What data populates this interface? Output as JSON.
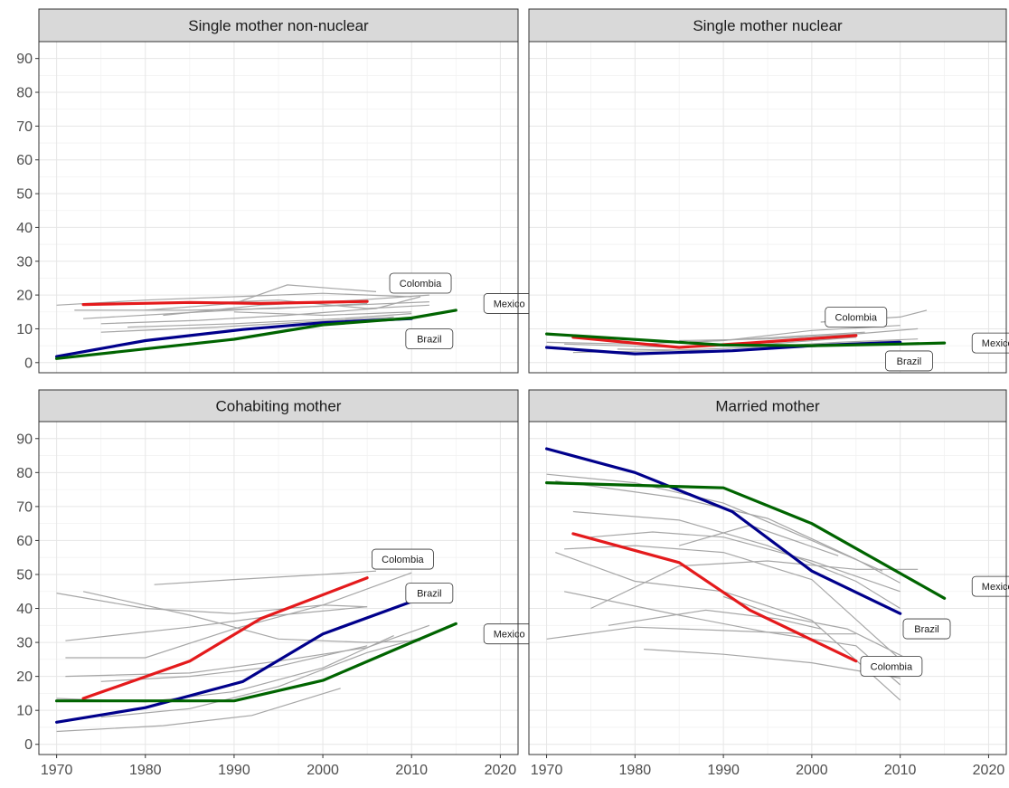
{
  "chart_data": [
    {
      "type": "line",
      "title": "Single mother non-nuclear",
      "xlim": [
        1968,
        2022
      ],
      "ylim": [
        -3,
        95
      ],
      "xticks": [
        1970,
        1980,
        1990,
        2000,
        2010,
        2020
      ],
      "yticks": [
        0,
        10,
        20,
        30,
        40,
        50,
        60,
        70,
        80,
        90
      ],
      "grid": true,
      "series": [
        {
          "name": "Colombia",
          "color": "#e41a1c",
          "x": [
            1973,
            1985,
            1993,
            2005
          ],
          "y": [
            17.2,
            17.8,
            17.5,
            18.1
          ]
        },
        {
          "name": "Brazil",
          "color": "#00008b",
          "x": [
            1970,
            1980,
            1991,
            2000,
            2010
          ],
          "y": [
            1.8,
            6.5,
            9.8,
            11.8,
            13.0
          ]
        },
        {
          "name": "Mexico",
          "color": "#006400",
          "x": [
            1970,
            1990,
            2000,
            2010,
            2015
          ],
          "y": [
            1.2,
            6.9,
            11.2,
            13.2,
            15.5
          ]
        }
      ],
      "labels": [
        {
          "country": "Colombia",
          "x": 2011,
          "y": 23.5
        },
        {
          "country": "Mexico",
          "x": 2021,
          "y": 17.5
        },
        {
          "country": "Brazil",
          "x": 2012,
          "y": 7.0
        }
      ],
      "background_lines": [
        [
          [
            1970,
            17.0
          ],
          [
            1980,
            18.5
          ],
          [
            1990,
            19.5
          ],
          [
            2000,
            20.5
          ],
          [
            2010,
            19.5
          ]
        ],
        [
          [
            1972,
            15.5
          ],
          [
            1985,
            15.5
          ],
          [
            1995,
            16.0
          ],
          [
            2005,
            17.5
          ]
        ],
        [
          [
            1973,
            13.0
          ],
          [
            1983,
            14.5
          ],
          [
            1993,
            16.0
          ],
          [
            2003,
            17.0
          ],
          [
            2012,
            18.0
          ]
        ],
        [
          [
            1975,
            11.5
          ],
          [
            1986,
            12.5
          ],
          [
            1996,
            14.0
          ],
          [
            2006,
            16.0
          ],
          [
            2011,
            19.5
          ]
        ],
        [
          [
            1978,
            10.5
          ],
          [
            1990,
            11.5
          ],
          [
            2002,
            13.0
          ],
          [
            2010,
            14.5
          ]
        ],
        [
          [
            1980,
            15.5
          ],
          [
            1990,
            17.5
          ],
          [
            1996,
            23.0
          ],
          [
            2006,
            21.0
          ]
        ],
        [
          [
            1975,
            9.0
          ],
          [
            1988,
            10.5
          ],
          [
            1998,
            12.0
          ],
          [
            2008,
            13.5
          ]
        ],
        [
          [
            1985,
            17.5
          ],
          [
            1995,
            18.5
          ],
          [
            2005,
            16.0
          ],
          [
            2012,
            17.0
          ]
        ],
        [
          [
            1990,
            15.0
          ],
          [
            2000,
            14.0
          ],
          [
            2010,
            15.0
          ]
        ],
        [
          [
            1982,
            14.0
          ],
          [
            1993,
            17.0
          ],
          [
            2004,
            18.5
          ],
          [
            2012,
            20.0
          ]
        ]
      ]
    },
    {
      "type": "line",
      "title": "Single mother nuclear",
      "xlim": [
        1968,
        2022
      ],
      "ylim": [
        -3,
        95
      ],
      "xticks": [
        1970,
        1980,
        1990,
        2000,
        2010,
        2020
      ],
      "yticks": [
        0,
        10,
        20,
        30,
        40,
        50,
        60,
        70,
        80,
        90
      ],
      "grid": true,
      "series": [
        {
          "name": "Colombia",
          "color": "#e41a1c",
          "x": [
            1973,
            1985,
            1993,
            2005
          ],
          "y": [
            7.5,
            4.5,
            5.8,
            8.0
          ]
        },
        {
          "name": "Brazil",
          "color": "#00008b",
          "x": [
            1970,
            1980,
            1991,
            2000,
            2010
          ],
          "y": [
            4.5,
            2.6,
            3.5,
            5.0,
            6.0
          ]
        },
        {
          "name": "Mexico",
          "color": "#006400",
          "x": [
            1970,
            1990,
            2000,
            2010,
            2015
          ],
          "y": [
            8.5,
            5.2,
            5.0,
            5.5,
            5.8
          ]
        }
      ],
      "labels": [
        {
          "country": "Colombia",
          "x": 2005,
          "y": 13.5
        },
        {
          "country": "Mexico",
          "x": 2021,
          "y": 5.8
        },
        {
          "country": "Brazil",
          "x": 2011,
          "y": 0.5
        }
      ],
      "background_lines": [
        [
          [
            1970,
            6.0
          ],
          [
            1980,
            5.5
          ],
          [
            1990,
            6.5
          ],
          [
            2000,
            9.5
          ],
          [
            2010,
            11.0
          ]
        ],
        [
          [
            1972,
            5.5
          ],
          [
            1985,
            4.5
          ],
          [
            1995,
            5.5
          ],
          [
            2005,
            7.5
          ]
        ],
        [
          [
            1973,
            3.0
          ],
          [
            1983,
            3.5
          ],
          [
            1993,
            4.5
          ],
          [
            2003,
            6.0
          ],
          [
            2012,
            7.0
          ]
        ],
        [
          [
            1976,
            7.5
          ],
          [
            1986,
            6.0
          ],
          [
            1996,
            7.5
          ],
          [
            2006,
            9.0
          ]
        ],
        [
          [
            1978,
            4.0
          ],
          [
            1990,
            3.5
          ],
          [
            2002,
            5.5
          ],
          [
            2010,
            6.5
          ]
        ],
        [
          [
            1985,
            6.5
          ],
          [
            1995,
            7.0
          ],
          [
            2005,
            8.5
          ],
          [
            2012,
            10.0
          ]
        ],
        [
          [
            2001,
            12.0
          ],
          [
            2010,
            13.5
          ],
          [
            2013,
            15.5
          ]
        ]
      ]
    },
    {
      "type": "line",
      "title": "Cohabiting mother",
      "xlim": [
        1968,
        2022
      ],
      "ylim": [
        -3,
        95
      ],
      "xticks": [
        1970,
        1980,
        1990,
        2000,
        2010,
        2020
      ],
      "yticks": [
        0,
        10,
        20,
        30,
        40,
        50,
        60,
        70,
        80,
        90
      ],
      "grid": true,
      "series": [
        {
          "name": "Colombia",
          "color": "#e41a1c",
          "x": [
            1973,
            1985,
            1993,
            2005
          ],
          "y": [
            13.5,
            24.5,
            37.0,
            49.0
          ]
        },
        {
          "name": "Brazil",
          "color": "#00008b",
          "x": [
            1970,
            1980,
            1991,
            2000,
            2010
          ],
          "y": [
            6.5,
            10.8,
            18.5,
            32.5,
            42.0
          ]
        },
        {
          "name": "Mexico",
          "color": "#006400",
          "x": [
            1970,
            1990,
            2000,
            2010,
            2015
          ],
          "y": [
            12.8,
            12.8,
            18.8,
            30.0,
            35.5
          ]
        }
      ],
      "labels": [
        {
          "country": "Colombia",
          "x": 2009,
          "y": 54.5
        },
        {
          "country": "Brazil",
          "x": 2012,
          "y": 44.5
        },
        {
          "country": "Mexico",
          "x": 2021,
          "y": 32.5
        }
      ],
      "background_lines": [
        [
          [
            1970,
            44.5
          ],
          [
            1980,
            40.0
          ],
          [
            1990,
            38.5
          ],
          [
            2000,
            41.0
          ],
          [
            2005,
            40.5
          ]
        ],
        [
          [
            1973,
            45.0
          ],
          [
            1985,
            38.0
          ],
          [
            1995,
            31.0
          ],
          [
            2005,
            30.0
          ],
          [
            2011,
            30.5
          ]
        ],
        [
          [
            1981,
            47.0
          ],
          [
            1990,
            48.5
          ],
          [
            2000,
            50.0
          ],
          [
            2006,
            51.0
          ]
        ],
        [
          [
            1971,
            30.5
          ],
          [
            1985,
            34.5
          ],
          [
            1995,
            38.0
          ],
          [
            2005,
            40.5
          ]
        ],
        [
          [
            1971,
            25.5
          ],
          [
            1980,
            25.5
          ],
          [
            1990,
            34.0
          ],
          [
            2000,
            41.0
          ],
          [
            2010,
            50.5
          ]
        ],
        [
          [
            1971,
            20.0
          ],
          [
            1985,
            21.0
          ],
          [
            1995,
            24.5
          ],
          [
            2005,
            28.5
          ],
          [
            2012,
            35.0
          ]
        ],
        [
          [
            1975,
            18.5
          ],
          [
            1985,
            20.0
          ],
          [
            1995,
            23.0
          ],
          [
            2005,
            29.0
          ]
        ],
        [
          [
            1970,
            13.5
          ],
          [
            1980,
            12.5
          ],
          [
            1990,
            15.5
          ],
          [
            2000,
            22.5
          ],
          [
            2008,
            32.0
          ]
        ],
        [
          [
            1970,
            3.8
          ],
          [
            1982,
            5.5
          ],
          [
            1992,
            8.5
          ],
          [
            2002,
            16.5
          ]
        ],
        [
          [
            1975,
            8.0
          ],
          [
            1985,
            10.5
          ],
          [
            1995,
            17.0
          ],
          [
            2005,
            27.0
          ],
          [
            2012,
            32.0
          ]
        ]
      ]
    },
    {
      "type": "line",
      "title": "Married mother",
      "xlim": [
        1968,
        2022
      ],
      "ylim": [
        -3,
        95
      ],
      "xticks": [
        1970,
        1980,
        1990,
        2000,
        2010,
        2020
      ],
      "yticks": [
        0,
        10,
        20,
        30,
        40,
        50,
        60,
        70,
        80,
        90
      ],
      "grid": true,
      "series": [
        {
          "name": "Colombia",
          "color": "#e41a1c",
          "x": [
            1973,
            1985,
            1993,
            2005
          ],
          "y": [
            62.0,
            53.5,
            39.5,
            24.5
          ]
        },
        {
          "name": "Brazil",
          "color": "#00008b",
          "x": [
            1970,
            1980,
            1991,
            2000,
            2010
          ],
          "y": [
            87.0,
            80.0,
            68.5,
            51.0,
            38.5
          ]
        },
        {
          "name": "Mexico",
          "color": "#006400",
          "x": [
            1970,
            1990,
            2000,
            2015
          ],
          "y": [
            77.0,
            75.5,
            65.0,
            43.0
          ]
        }
      ],
      "labels": [
        {
          "country": "Mexico",
          "x": 2021,
          "y": 46.5
        },
        {
          "country": "Brazil",
          "x": 2013,
          "y": 34.0
        },
        {
          "country": "Colombia",
          "x": 2009,
          "y": 23.0
        }
      ],
      "background_lines": [
        [
          [
            1970,
            79.5
          ],
          [
            1980,
            77.0
          ],
          [
            1990,
            71.0
          ],
          [
            2000,
            60.0
          ],
          [
            2008,
            51.0
          ]
        ],
        [
          [
            1971,
            77.5
          ],
          [
            1985,
            72.5
          ],
          [
            1995,
            66.5
          ],
          [
            2005,
            54.5
          ],
          [
            2010,
            47.5
          ]
        ],
        [
          [
            1973,
            68.5
          ],
          [
            1985,
            66.0
          ],
          [
            1995,
            58.5
          ],
          [
            2005,
            48.0
          ],
          [
            2010,
            40.0
          ]
        ],
        [
          [
            1975,
            61.0
          ],
          [
            1982,
            62.5
          ],
          [
            1990,
            61.0
          ],
          [
            2000,
            54.0
          ],
          [
            2010,
            45.0
          ]
        ],
        [
          [
            1972,
            57.5
          ],
          [
            1980,
            58.5
          ],
          [
            1990,
            56.5
          ],
          [
            2000,
            48.5
          ],
          [
            2010,
            25.0
          ]
        ],
        [
          [
            1975,
            40.0
          ],
          [
            1985,
            52.5
          ],
          [
            1995,
            54.0
          ],
          [
            2005,
            51.5
          ],
          [
            2012,
            51.5
          ]
        ],
        [
          [
            1970,
            31.0
          ],
          [
            1980,
            34.5
          ],
          [
            1990,
            33.5
          ],
          [
            2000,
            32.5
          ],
          [
            2005,
            32.5
          ]
        ],
        [
          [
            1972,
            45.0
          ],
          [
            1985,
            38.0
          ],
          [
            1995,
            33.0
          ],
          [
            2005,
            29.0
          ],
          [
            2010,
            17.5
          ]
        ],
        [
          [
            1971,
            56.5
          ],
          [
            1980,
            48.0
          ],
          [
            1990,
            45.0
          ],
          [
            2000,
            36.5
          ],
          [
            2010,
            13.0
          ]
        ],
        [
          [
            1977,
            35.0
          ],
          [
            1988,
            39.5
          ],
          [
            1996,
            37.0
          ],
          [
            2001,
            34.0
          ]
        ],
        [
          [
            1981,
            28.0
          ],
          [
            1990,
            26.5
          ],
          [
            2000,
            24.0
          ],
          [
            2010,
            19.5
          ]
        ],
        [
          [
            1990,
            43.5
          ],
          [
            1996,
            38.0
          ],
          [
            2004,
            34.0
          ],
          [
            2011,
            25.0
          ]
        ],
        [
          [
            1985,
            58.5
          ],
          [
            1993,
            64.5
          ],
          [
            2003,
            55.5
          ]
        ]
      ]
    }
  ],
  "colors": {
    "colombia": "#e41a1c",
    "brazil": "#00008b",
    "mexico": "#006400",
    "background_series": "#a6a6a6",
    "strip": "#d9d9d9"
  }
}
